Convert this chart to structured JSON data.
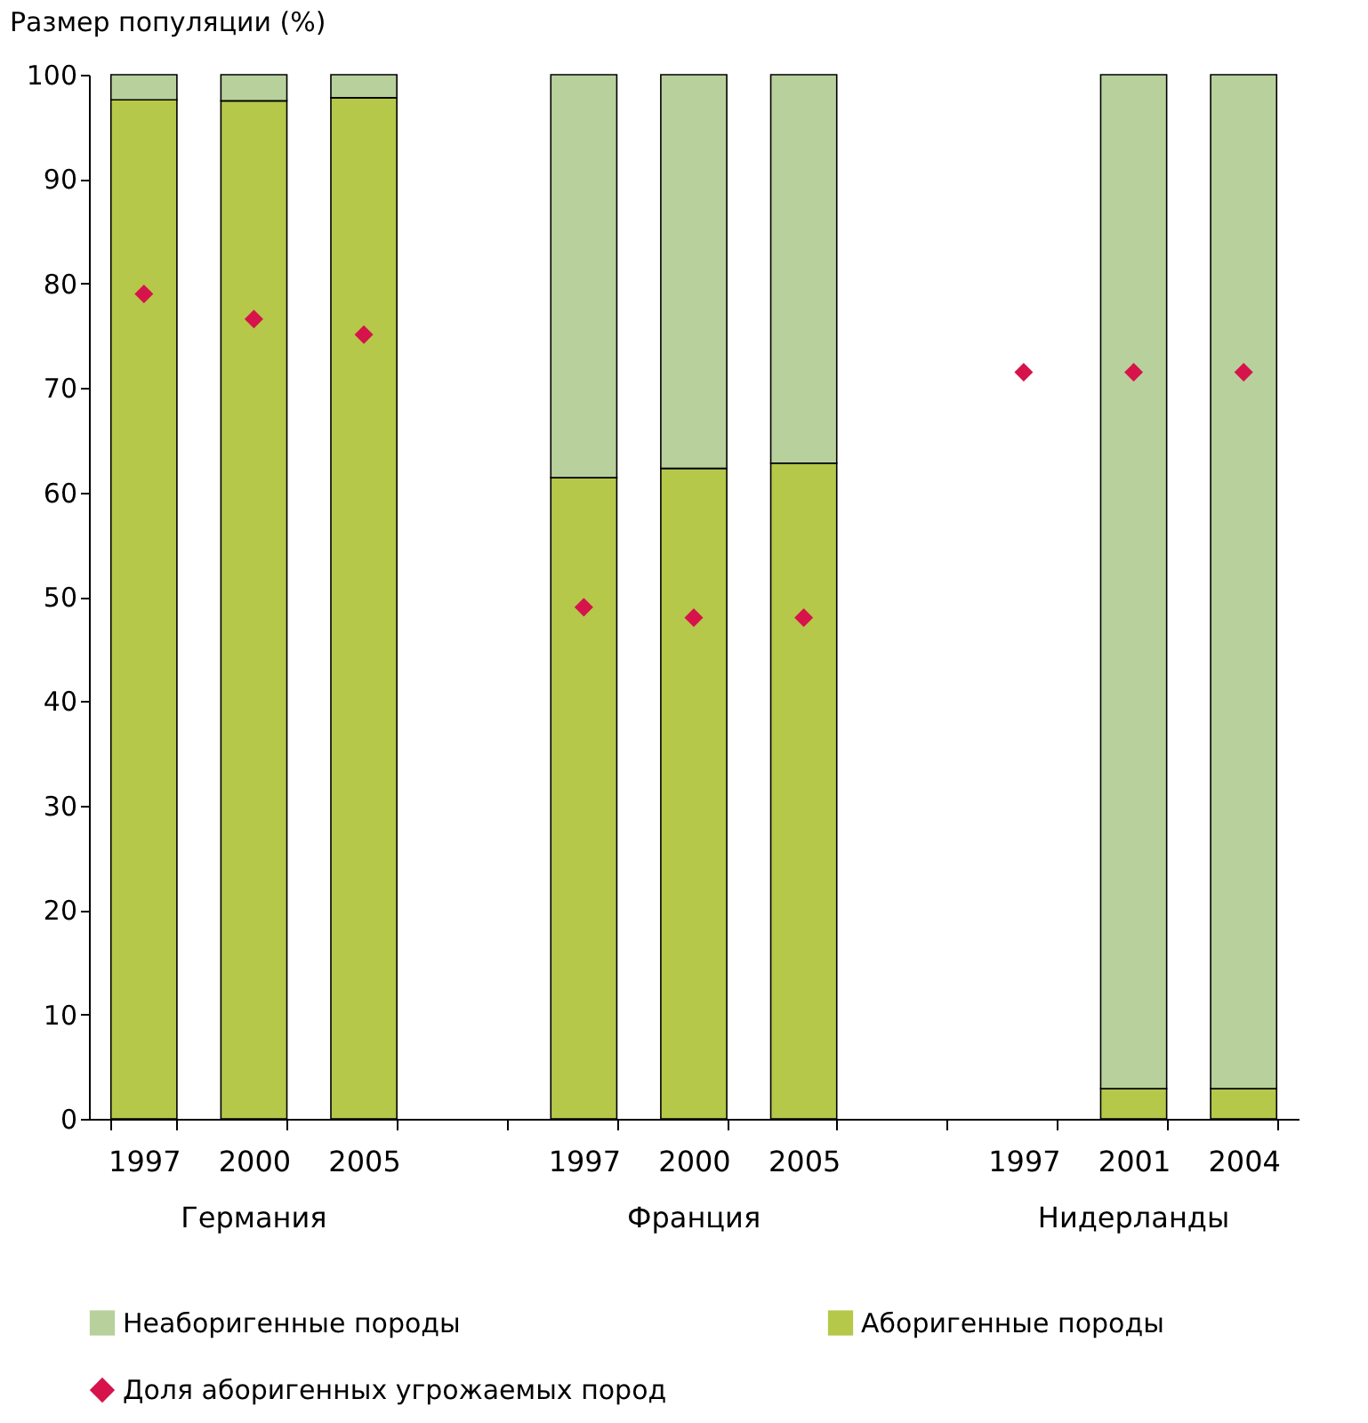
{
  "chart_data": {
    "type": "bar",
    "stacked": true,
    "ylabel": "Размер популяции (%)",
    "categories": [
      "1997",
      "2000",
      "2005",
      null,
      "1997",
      "2000",
      "2005",
      null,
      "1997",
      "2001",
      "2004"
    ],
    "series": [
      {
        "name": "Аборигенные породы",
        "color": "#b5c84a",
        "values": [
          97.6,
          97.5,
          97.8,
          null,
          61.4,
          62.3,
          62.8,
          null,
          null,
          2.9,
          2.9
        ]
      },
      {
        "name": "Неаборигенные породы",
        "color": "#b8d09c",
        "values": [
          2.4,
          2.5,
          2.2,
          null,
          38.6,
          37.7,
          37.2,
          null,
          null,
          97.1,
          97.1
        ]
      },
      {
        "name": "Доля аборигенных угрожаемых пород",
        "type": "scatter",
        "marker": "diamond",
        "color": "#d6134a",
        "values": [
          79.0,
          76.6,
          75.1,
          null,
          49.0,
          48.0,
          48.0,
          null,
          71.5,
          71.5,
          71.5
        ]
      }
    ],
    "ylim": [
      0,
      100
    ],
    "yticks": [
      0,
      10,
      20,
      30,
      40,
      50,
      60,
      70,
      80,
      90,
      100
    ],
    "grid": false,
    "legend": "bottom",
    "annotations": [
      "Германия",
      "Франция",
      "Нидерланды"
    ]
  }
}
